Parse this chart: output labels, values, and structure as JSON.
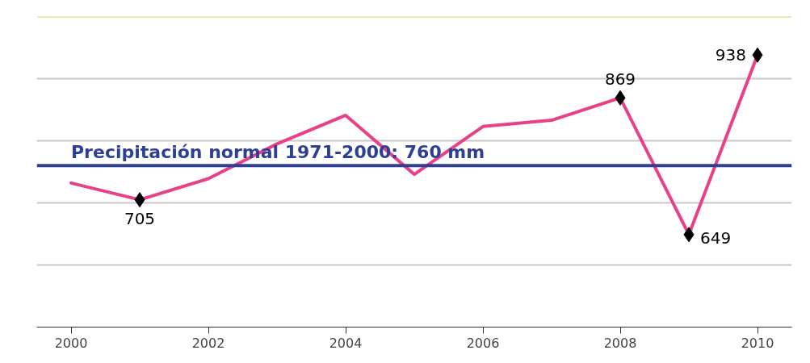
{
  "chart_data": {
    "type": "line",
    "x": [
      2000,
      2001,
      2002,
      2003,
      2004,
      2005,
      2006,
      2007,
      2008,
      2009,
      2010
    ],
    "series": [
      {
        "type": "line",
        "color": "#e8418a",
        "marker": "none",
        "values": [
          732,
          705,
          739,
          795,
          841,
          746,
          823,
          833,
          869,
          649,
          938
        ]
      },
      {
        "type": "scatter",
        "color": "#000000",
        "marker": "diamond",
        "values": [
          null,
          705,
          null,
          null,
          null,
          null,
          null,
          null,
          869,
          649,
          938
        ],
        "value_labels": [
          null,
          "705",
          null,
          null,
          null,
          null,
          null,
          null,
          "869",
          "649",
          "938"
        ]
      }
    ],
    "xlim": [
      1999.5,
      2010.5
    ],
    "xticks": [
      2000,
      2002,
      2004,
      2006,
      2008,
      2010
    ],
    "ylim": [
      500,
      1000
    ],
    "yticks": [
      500,
      600,
      700,
      800,
      900
    ],
    "tick_labels": "x",
    "grid": "y",
    "ref_lines": [
      {
        "axis": "y",
        "value": 760,
        "label": "Precipitación normal 1971-2000: 760 mm",
        "color": "#2e3f96"
      }
    ]
  }
}
